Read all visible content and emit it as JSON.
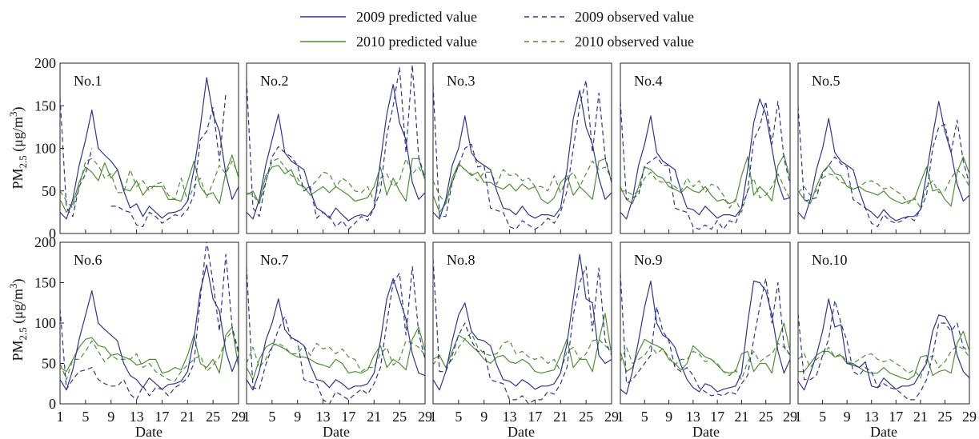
{
  "colors": {
    "blue": "#2e3592",
    "green": "#4f8f35"
  },
  "chart_data": {
    "type": "line",
    "layout": "small-multiples 2x5",
    "xlabel": "Date",
    "ylabel_main": "PM",
    "ylabel_sub": "2.5",
    "ylabel_unit_pre": " (μg/m",
    "ylabel_unit_sup": "3",
    "ylabel_unit_post": ")",
    "xlim": [
      1,
      29
    ],
    "ylim": [
      0,
      200
    ],
    "xticks": [
      1,
      5,
      9,
      13,
      17,
      21,
      25,
      29
    ],
    "yticks": [
      0,
      50,
      100,
      150,
      200
    ],
    "grid": false,
    "legend": {
      "placement": "top-center",
      "entries": [
        {
          "label": "2009 predicted value",
          "color": "#2e3592",
          "style": "solid"
        },
        {
          "label": "2009 observed value",
          "color": "#2e3592",
          "style": "dashed"
        },
        {
          "label": "2010 predicted value",
          "color": "#4f8f35",
          "style": "solid"
        },
        {
          "label": "2010 observed value",
          "color": "#4f8f35",
          "style": "dashed"
        }
      ]
    },
    "x": [
      1,
      2,
      3,
      4,
      5,
      6,
      7,
      8,
      9,
      10,
      11,
      12,
      13,
      14,
      15,
      16,
      17,
      18,
      19,
      20,
      21,
      22,
      23,
      24,
      25,
      26,
      27,
      28,
      29
    ],
    "panels": [
      {
        "label": "No.1",
        "p2009": [
          25,
          17,
          40,
          80,
          110,
          145,
          100,
          92,
          85,
          75,
          50,
          30,
          35,
          20,
          32,
          25,
          18,
          24,
          25,
          28,
          38,
          75,
          125,
          183,
          140,
          120,
          70,
          40,
          55
        ],
        "o2009": [
          160,
          30,
          20,
          55,
          70,
          100,
          null,
          null,
          32,
          32,
          27,
          25,
          10,
          8,
          25,
          20,
          12,
          17,
          22,
          20,
          28,
          45,
          110,
          120,
          148,
          85,
          165,
          null,
          null
        ],
        "p2010": [
          40,
          25,
          35,
          60,
          78,
          72,
          62,
          83,
          65,
          75,
          52,
          50,
          62,
          45,
          55,
          55,
          55,
          40,
          40,
          38,
          60,
          85,
          55,
          45,
          48,
          35,
          72,
          92,
          65
        ],
        "o2010": [
          50,
          38,
          30,
          55,
          85,
          88,
          80,
          65,
          70,
          48,
          48,
          75,
          55,
          62,
          50,
          58,
          60,
          45,
          40,
          65,
          38,
          55,
          65,
          42,
          60,
          80,
          70,
          85,
          70
        ]
      },
      {
        "label": "No.2",
        "p2009": [
          25,
          17,
          40,
          80,
          110,
          140,
          95,
          85,
          80,
          75,
          50,
          30,
          25,
          18,
          30,
          22,
          15,
          20,
          22,
          20,
          30,
          85,
          140,
          175,
          130,
          110,
          60,
          40,
          48
        ],
        "o2009": [
          180,
          30,
          20,
          60,
          90,
          102,
          95,
          90,
          80,
          50,
          55,
          18,
          25,
          20,
          8,
          15,
          5,
          12,
          20,
          15,
          30,
          50,
          115,
          150,
          195,
          95,
          198,
          90,
          65
        ],
        "p2010": [
          45,
          50,
          35,
          68,
          78,
          80,
          70,
          75,
          58,
          55,
          45,
          50,
          55,
          48,
          55,
          50,
          45,
          38,
          40,
          42,
          55,
          78,
          45,
          65,
          50,
          38,
          88,
          88,
          62
        ],
        "o2010": [
          48,
          45,
          35,
          60,
          85,
          88,
          78,
          68,
          65,
          52,
          55,
          62,
          72,
          70,
          55,
          65,
          60,
          50,
          48,
          55,
          38,
          65,
          70,
          55,
          62,
          88,
          70,
          78,
          65
        ]
      },
      {
        "label": "No.3",
        "p2009": [
          25,
          17,
          40,
          80,
          100,
          138,
          95,
          85,
          80,
          75,
          50,
          30,
          28,
          22,
          32,
          22,
          18,
          22,
          22,
          20,
          30,
          75,
          135,
          168,
          125,
          105,
          65,
          40,
          48
        ],
        "o2009": [
          175,
          20,
          20,
          60,
          80,
          100,
          105,
          78,
          80,
          30,
          27,
          25,
          8,
          5,
          15,
          10,
          5,
          10,
          18,
          12,
          25,
          50,
          100,
          150,
          180,
          95,
          165,
          90,
          60
        ],
        "p2010": [
          45,
          25,
          35,
          65,
          82,
          75,
          68,
          72,
          60,
          60,
          55,
          52,
          58,
          50,
          58,
          52,
          55,
          40,
          35,
          42,
          60,
          68,
          45,
          55,
          48,
          40,
          85,
          88,
          60
        ],
        "o2010": [
          62,
          45,
          35,
          60,
          80,
          75,
          70,
          62,
          72,
          72,
          58,
          75,
          68,
          70,
          62,
          65,
          55,
          55,
          50,
          68,
          48,
          65,
          72,
          55,
          70,
          85,
          75,
          78,
          65
        ]
      },
      {
        "label": "No.4",
        "p2009": [
          25,
          17,
          40,
          80,
          105,
          138,
          95,
          85,
          80,
          75,
          50,
          30,
          28,
          22,
          32,
          25,
          18,
          22,
          22,
          20,
          30,
          75,
          130,
          158,
          140,
          100,
          60,
          40,
          42
        ],
        "o2009": [
          155,
          40,
          42,
          45,
          80,
          85,
          90,
          80,
          80,
          30,
          27,
          25,
          8,
          5,
          10,
          5,
          15,
          5,
          15,
          12,
          30,
          50,
          110,
          125,
          155,
          105,
          155,
          88,
          58
        ],
        "p2010": [
          55,
          40,
          35,
          55,
          78,
          75,
          68,
          65,
          55,
          52,
          48,
          55,
          50,
          48,
          55,
          45,
          38,
          40,
          35,
          38,
          68,
          90,
          45,
          55,
          48,
          38,
          80,
          92,
          65
        ],
        "o2010": [
          50,
          50,
          45,
          50,
          65,
          72,
          62,
          60,
          60,
          55,
          50,
          65,
          55,
          62,
          48,
          58,
          55,
          45,
          30,
          40,
          25,
          50,
          65,
          42,
          45,
          55,
          70,
          55,
          40
        ]
      },
      {
        "label": "No.5",
        "p2009": [
          25,
          17,
          40,
          75,
          100,
          135,
          95,
          85,
          80,
          75,
          50,
          30,
          25,
          18,
          28,
          20,
          15,
          18,
          20,
          20,
          28,
          70,
          115,
          155,
          120,
          95,
          58,
          38,
          45
        ],
        "o2009": [
          150,
          38,
          40,
          42,
          70,
          80,
          90,
          82,
          78,
          40,
          35,
          30,
          12,
          8,
          22,
          15,
          12,
          15,
          20,
          15,
          28,
          45,
          100,
          125,
          128,
          95,
          133,
          85,
          58
        ],
        "p2010": [
          50,
          40,
          35,
          55,
          72,
          80,
          70,
          68,
          55,
          52,
          55,
          50,
          48,
          45,
          50,
          42,
          38,
          35,
          38,
          40,
          60,
          78,
          50,
          52,
          40,
          32,
          72,
          90,
          70
        ],
        "o2010": [
          48,
          55,
          45,
          50,
          65,
          70,
          68,
          60,
          58,
          52,
          55,
          60,
          62,
          58,
          52,
          55,
          50,
          45,
          35,
          42,
          30,
          55,
          62,
          48,
          50,
          65,
          75,
          68,
          55
        ]
      },
      {
        "label": "No.6",
        "p2009": [
          30,
          17,
          42,
          80,
          110,
          140,
          100,
          92,
          85,
          78,
          50,
          35,
          30,
          20,
          32,
          25,
          18,
          24,
          25,
          28,
          40,
          80,
          140,
          172,
          130,
          115,
          65,
          40,
          60
        ],
        "o2009": [
          118,
          18,
          30,
          40,
          42,
          45,
          30,
          25,
          22,
          22,
          30,
          12,
          5,
          22,
          10,
          20,
          18,
          10,
          20,
          25,
          32,
          50,
          130,
          202,
          150,
          90,
          185,
          95,
          65
        ],
        "p2010": [
          45,
          40,
          55,
          70,
          80,
          82,
          72,
          70,
          60,
          62,
          58,
          55,
          48,
          50,
          55,
          55,
          38,
          40,
          45,
          42,
          60,
          85,
          50,
          45,
          55,
          38,
          85,
          95,
          45
        ],
        "o2010": [
          50,
          30,
          55,
          55,
          65,
          78,
          65,
          52,
          60,
          55,
          55,
          55,
          62,
          45,
          50,
          40,
          35,
          30,
          28,
          40,
          48,
          55,
          60,
          40,
          48,
          58,
          80,
          90,
          62
        ]
      },
      {
        "label": "No.7",
        "p2009": [
          30,
          17,
          40,
          78,
          100,
          130,
          92,
          82,
          78,
          72,
          48,
          30,
          28,
          20,
          30,
          25,
          18,
          22,
          22,
          25,
          38,
          78,
          130,
          155,
          130,
          105,
          62,
          38,
          35
        ],
        "o2009": [
          170,
          20,
          18,
          48,
          70,
          92,
          108,
          80,
          78,
          30,
          27,
          25,
          5,
          0,
          15,
          10,
          5,
          12,
          18,
          12,
          25,
          45,
          100,
          150,
          162,
          85,
          170,
          88,
          55
        ],
        "p2010": [
          45,
          30,
          55,
          70,
          75,
          72,
          68,
          62,
          58,
          58,
          55,
          50,
          48,
          45,
          55,
          50,
          38,
          40,
          38,
          42,
          60,
          72,
          45,
          55,
          50,
          42,
          80,
          95,
          65
        ],
        "o2010": [
          50,
          70,
          45,
          55,
          72,
          75,
          70,
          62,
          62,
          72,
          60,
          75,
          68,
          70,
          62,
          68,
          58,
          55,
          40,
          45,
          45,
          62,
          70,
          48,
          55,
          78,
          75,
          70,
          60
        ]
      },
      {
        "label": "No.8",
        "p2009": [
          30,
          17,
          40,
          78,
          110,
          125,
          90,
          80,
          78,
          72,
          48,
          30,
          28,
          22,
          30,
          25,
          18,
          22,
          22,
          25,
          38,
          75,
          130,
          185,
          130,
          125,
          60,
          50,
          55
        ],
        "o2009": [
          180,
          40,
          40,
          60,
          85,
          100,
          78,
          65,
          65,
          30,
          27,
          25,
          5,
          5,
          10,
          0,
          5,
          5,
          15,
          12,
          25,
          45,
          110,
          150,
          170,
          90,
          168,
          78,
          60
        ],
        "p2010": [
          55,
          60,
          45,
          65,
          85,
          80,
          72,
          65,
          55,
          50,
          58,
          60,
          52,
          50,
          55,
          50,
          40,
          38,
          40,
          42,
          60,
          80,
          45,
          55,
          55,
          40,
          78,
          112,
          60
        ],
        "o2010": [
          48,
          60,
          45,
          55,
          70,
          80,
          88,
          70,
          62,
          60,
          62,
          75,
          78,
          62,
          65,
          58,
          55,
          58,
          50,
          55,
          40,
          65,
          70,
          55,
          62,
          78,
          80,
          72,
          65
        ]
      },
      {
        "label": "No.9",
        "p2009": [
          18,
          12,
          40,
          78,
          120,
          152,
          100,
          85,
          80,
          70,
          48,
          30,
          20,
          15,
          25,
          22,
          15,
          18,
          20,
          22,
          38,
          100,
          152,
          150,
          140,
          110,
          65,
          38,
          55
        ],
        "o2009": [
          162,
          25,
          30,
          40,
          50,
          60,
          120,
          90,
          78,
          45,
          40,
          45,
          35,
          20,
          15,
          10,
          12,
          10,
          15,
          12,
          25,
          35,
          80,
          120,
          155,
          100,
          150,
          72,
          60
        ],
        "p2010": [
          65,
          40,
          45,
          65,
          80,
          75,
          72,
          68,
          55,
          50,
          42,
          50,
          72,
          65,
          58,
          55,
          48,
          40,
          38,
          40,
          62,
          65,
          40,
          50,
          50,
          38,
          78,
          100,
          65
        ],
        "o2010": [
          52,
          70,
          50,
          55,
          60,
          72,
          62,
          68,
          58,
          48,
          55,
          55,
          65,
          62,
          52,
          55,
          50,
          40,
          35,
          42,
          30,
          52,
          65,
          52,
          58,
          62,
          75,
          70,
          60
        ]
      },
      {
        "label": "No.10",
        "p2009": [
          28,
          17,
          38,
          60,
          90,
          130,
          95,
          98,
          50,
          48,
          45,
          52,
          22,
          20,
          32,
          25,
          18,
          22,
          22,
          25,
          38,
          50,
          90,
          110,
          108,
          95,
          60,
          40,
          32
        ],
        "o2009": [
          112,
          30,
          30,
          35,
          60,
          80,
          128,
          100,
          78,
          40,
          35,
          45,
          40,
          20,
          25,
          20,
          18,
          12,
          5,
          5,
          15,
          30,
          60,
          100,
          100,
          90,
          100,
          70,
          65
        ],
        "p2010": [
          40,
          40,
          50,
          60,
          65,
          65,
          58,
          60,
          50,
          50,
          45,
          40,
          38,
          38,
          45,
          38,
          35,
          32,
          30,
          35,
          58,
          60,
          35,
          40,
          42,
          38,
          75,
          90,
          65
        ],
        "o2010": [
          55,
          62,
          45,
          55,
          60,
          70,
          58,
          62,
          52,
          50,
          55,
          60,
          62,
          55,
          52,
          55,
          50,
          45,
          38,
          42,
          32,
          55,
          60,
          45,
          52,
          65,
          72,
          68,
          58
        ]
      }
    ]
  }
}
